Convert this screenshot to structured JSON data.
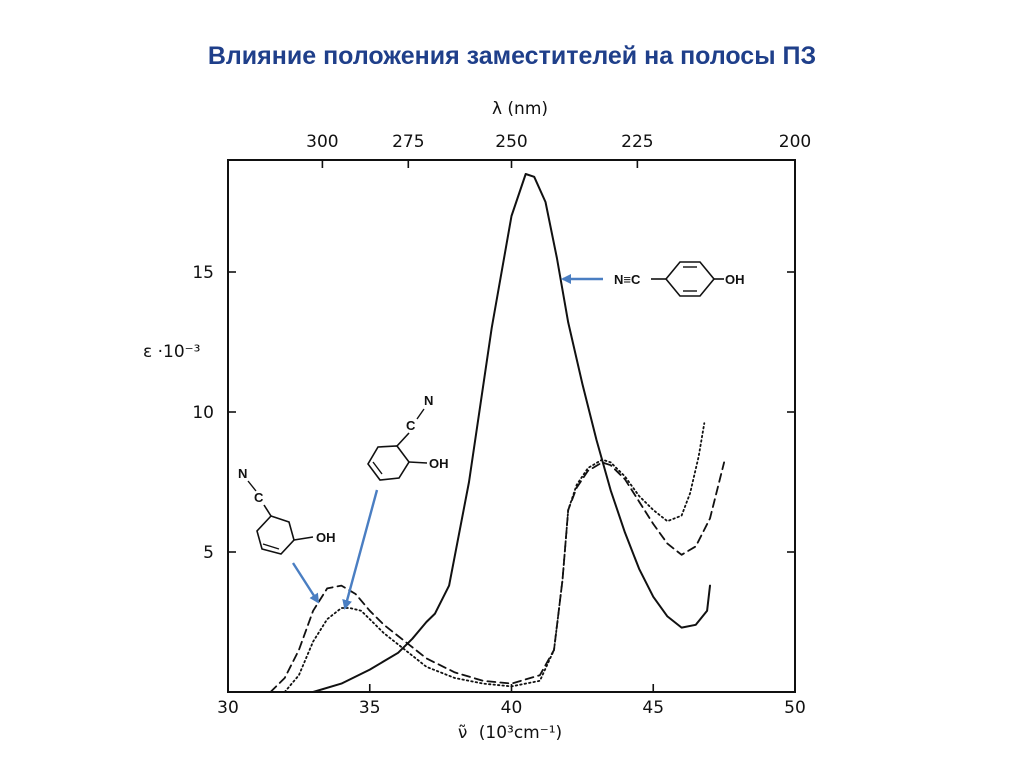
{
  "slide": {
    "title": "Влияние положения заместителей на полосы ПЗ"
  },
  "chart_data": {
    "type": "line",
    "x_axis": {
      "label_symbol": "ν̃",
      "label_units": "(10³cm⁻¹)",
      "range": [
        30,
        50
      ],
      "ticks": [
        30,
        35,
        40,
        45,
        50
      ]
    },
    "x2_axis": {
      "label": "λ (nm)",
      "ticks": [
        {
          "label": "300",
          "value": 33.33
        },
        {
          "label": "275",
          "value": 36.36
        },
        {
          "label": "250",
          "value": 40.0
        },
        {
          "label": "225",
          "value": 44.44
        },
        {
          "label": "200",
          "value": 50.0
        }
      ]
    },
    "y_axis": {
      "label_symbol": "ε",
      "label_multiplier": "·10⁻³",
      "range": [
        0,
        19
      ],
      "ticks": [
        5,
        10,
        15
      ]
    },
    "grid": false,
    "legend": "none",
    "series": [
      {
        "style": "solid",
        "molecule": {
          "groups": [
            "N≡C",
            "OH"
          ],
          "substitution": "para"
        },
        "x": [
          33.0,
          34.0,
          35.0,
          36.0,
          36.5,
          37.0,
          37.3,
          37.8,
          38.5,
          39.3,
          40.0,
          40.5,
          40.8,
          41.2,
          41.6,
          42.0,
          42.5,
          43.0,
          43.5,
          44.0,
          44.5,
          45.0,
          45.5,
          46.0,
          46.5,
          46.9,
          47.0
        ],
        "y": [
          0.0,
          0.3,
          0.8,
          1.4,
          1.9,
          2.5,
          2.8,
          3.8,
          7.5,
          13.0,
          17.0,
          18.5,
          18.4,
          17.5,
          15.5,
          13.2,
          11.0,
          9.0,
          7.2,
          5.7,
          4.4,
          3.4,
          2.7,
          2.3,
          2.4,
          2.9,
          3.8
        ]
      },
      {
        "style": "dashed",
        "molecule": {
          "groups": [
            "N≡C",
            "OH"
          ],
          "substitution": "meta"
        },
        "x": [
          31.5,
          32.0,
          32.5,
          33.0,
          33.5,
          34.0,
          34.5,
          35.0,
          35.5,
          36.0,
          36.5,
          37.0,
          38.0,
          39.0,
          40.0,
          41.0,
          41.5,
          41.8,
          42.0,
          42.3,
          42.7,
          43.2,
          43.5,
          44.0,
          44.5,
          45.0,
          45.5,
          46.0,
          46.5,
          47.0,
          47.5
        ],
        "y": [
          0.0,
          0.5,
          1.5,
          2.9,
          3.7,
          3.8,
          3.5,
          2.9,
          2.4,
          2.0,
          1.6,
          1.2,
          0.7,
          0.4,
          0.3,
          0.6,
          1.5,
          4.0,
          6.5,
          7.3,
          7.9,
          8.2,
          8.1,
          7.6,
          6.8,
          6.0,
          5.3,
          4.9,
          5.2,
          6.2,
          8.2
        ]
      },
      {
        "style": "dotted",
        "molecule": {
          "groups": [
            "N",
            "C",
            "OH"
          ],
          "substitution": "ortho"
        },
        "x": [
          32.0,
          32.5,
          33.0,
          33.5,
          34.0,
          34.3,
          34.7,
          35.0,
          35.5,
          36.0,
          36.5,
          37.0,
          38.0,
          39.0,
          40.0,
          41.0,
          41.5,
          41.8,
          42.0,
          42.3,
          42.7,
          43.2,
          43.5,
          44.0,
          44.5,
          45.0,
          45.5,
          46.0,
          46.3,
          46.6,
          46.8
        ],
        "y": [
          0.0,
          0.6,
          1.8,
          2.6,
          3.0,
          3.0,
          2.9,
          2.6,
          2.1,
          1.7,
          1.3,
          0.9,
          0.5,
          0.3,
          0.2,
          0.4,
          1.5,
          4.0,
          6.5,
          7.4,
          8.0,
          8.3,
          8.2,
          7.7,
          7.0,
          6.5,
          6.1,
          6.3,
          7.1,
          8.4,
          9.6
        ]
      }
    ]
  },
  "molecules": {
    "para": {
      "left_group": "N≡C",
      "right_group": "OH"
    },
    "meta": {
      "nitrogen": "N",
      "carbon": "C",
      "hydroxyl": "OH"
    },
    "ortho": {
      "nitrogen": "N",
      "carbon": "C",
      "hydroxyl": "OH"
    }
  },
  "colors": {
    "title": "#1f3f8a",
    "arrow": "#4a7ec2",
    "ink": "#111111"
  }
}
